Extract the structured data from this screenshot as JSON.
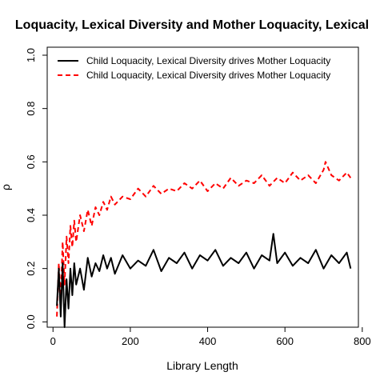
{
  "chart_data": {
    "type": "line",
    "title": "Loquacity, Lexical Diversity and Mother Loquacity, Lexical",
    "xlabel": "Library Length",
    "ylabel": "ρ",
    "xlim": [
      -15,
      790
    ],
    "ylim": [
      -0.02,
      1.03
    ],
    "x_ticks": [
      0,
      200,
      400,
      600,
      800
    ],
    "x_tick_labels": [
      "0",
      "200",
      "400",
      "600",
      "800"
    ],
    "y_ticks": [
      0.0,
      0.2,
      0.4,
      0.6,
      0.8,
      1.0
    ],
    "y_tick_labels": [
      "0.0",
      "0.2",
      "0.4",
      "0.6",
      "0.8",
      "1.0"
    ],
    "grid": false,
    "legend_position": "top-left",
    "colors": {
      "series1": "#000000",
      "series2": "#ff0000"
    },
    "series": [
      {
        "name": "Child Loquacity, Lexical Diversity drives Mother Loquacity",
        "line_style": "solid",
        "color": "#000000",
        "x": [
          10,
          15,
          20,
          25,
          30,
          35,
          40,
          45,
          50,
          55,
          60,
          70,
          80,
          90,
          100,
          110,
          120,
          130,
          140,
          150,
          160,
          180,
          200,
          220,
          240,
          260,
          280,
          300,
          320,
          340,
          360,
          380,
          400,
          420,
          440,
          460,
          480,
          500,
          520,
          540,
          560,
          570,
          580,
          600,
          620,
          640,
          660,
          680,
          700,
          720,
          740,
          760,
          770
        ],
        "y": [
          0.06,
          0.2,
          0.02,
          0.22,
          -0.02,
          0.16,
          0.05,
          0.2,
          0.1,
          0.22,
          0.14,
          0.2,
          0.12,
          0.24,
          0.17,
          0.22,
          0.19,
          0.25,
          0.2,
          0.24,
          0.18,
          0.25,
          0.2,
          0.23,
          0.21,
          0.27,
          0.19,
          0.24,
          0.22,
          0.26,
          0.2,
          0.25,
          0.23,
          0.27,
          0.21,
          0.24,
          0.22,
          0.26,
          0.2,
          0.25,
          0.23,
          0.33,
          0.22,
          0.26,
          0.21,
          0.24,
          0.22,
          0.27,
          0.2,
          0.25,
          0.22,
          0.26,
          0.2
        ]
      },
      {
        "name": "Child Loquacity, Lexical Diversity drives Mother Loquacity",
        "line_style": "dashed",
        "color": "#ff0000",
        "x": [
          10,
          15,
          20,
          25,
          30,
          35,
          40,
          45,
          50,
          55,
          60,
          70,
          80,
          90,
          100,
          110,
          120,
          130,
          140,
          150,
          160,
          180,
          200,
          220,
          240,
          260,
          280,
          300,
          320,
          340,
          360,
          380,
          400,
          420,
          440,
          460,
          480,
          500,
          520,
          540,
          560,
          580,
          600,
          620,
          640,
          660,
          680,
          700,
          705,
          720,
          740,
          760,
          770
        ],
        "y": [
          0.02,
          0.22,
          0.08,
          0.3,
          0.14,
          0.32,
          0.22,
          0.36,
          0.28,
          0.38,
          0.3,
          0.4,
          0.34,
          0.42,
          0.36,
          0.43,
          0.4,
          0.45,
          0.42,
          0.47,
          0.44,
          0.47,
          0.46,
          0.5,
          0.47,
          0.51,
          0.48,
          0.5,
          0.49,
          0.52,
          0.5,
          0.53,
          0.49,
          0.52,
          0.5,
          0.54,
          0.51,
          0.53,
          0.52,
          0.55,
          0.51,
          0.54,
          0.52,
          0.56,
          0.53,
          0.55,
          0.52,
          0.57,
          0.6,
          0.55,
          0.53,
          0.56,
          0.54
        ]
      }
    ]
  }
}
